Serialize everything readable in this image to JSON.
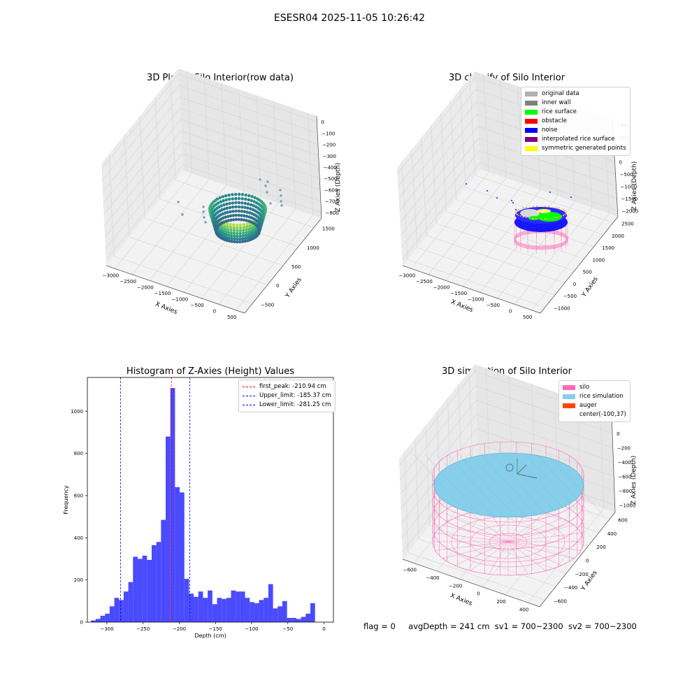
{
  "figure": {
    "suptitle": "ESESR04 2025-11-05 10:26:42",
    "status": {
      "flag": "flag = 0",
      "avg_depth": "avgDepth = 241 cm",
      "sv1": "sv1 = 700~2300",
      "sv2": "sv2 = 700~2300"
    }
  },
  "colors": {
    "histogram_bar": "#4a4aff",
    "first_peak": "#ff0000",
    "limits": "#0000ff",
    "silo": "#ff69b4",
    "rice_simulation": "#87ceeb",
    "auger": "#ff4500",
    "original": "#b0b0b0",
    "inner_wall": "#808080",
    "rice_surface": "#00ff00",
    "obstacle": "#ff0000",
    "noise": "#0000ff",
    "interpolated": "#800080",
    "symmetric": "#ffff00"
  },
  "chart_data": [
    {
      "type": "scatter3d",
      "title": "3D Plot of Silo Interior(row data)",
      "xlabel": "X Axies",
      "ylabel": "Y Axies",
      "zlabel": "Z Axies (Depth)",
      "x_ticks": [
        "−3000",
        "−2500",
        "−2000",
        "−1500",
        "−1000",
        "−500",
        "0",
        "500"
      ],
      "y_ticks": [
        "−500",
        "0",
        "500",
        "1000",
        "1500"
      ],
      "z_ticks": [
        "0",
        "−100",
        "−200",
        "−300",
        "−400",
        "−500",
        "−600",
        "−700",
        "−800"
      ],
      "colormap": "viridis"
    },
    {
      "type": "scatter3d",
      "title": "3D classify of Silo Interior",
      "xlabel": "X Axies",
      "ylabel": "Y Axies",
      "zlabel": "Z Axies (Depth)",
      "x_ticks": [
        "−3000",
        "−2500",
        "−2000",
        "−1500",
        "−1000",
        "−500",
        "0",
        "500"
      ],
      "y_ticks": [
        "−1000",
        "−500",
        "0",
        "500",
        "1000",
        "1500",
        "2000",
        "2500"
      ],
      "z_ticks": [
        "1500",
        "1000",
        "500",
        "0",
        "−500",
        "−1000",
        "−1500",
        "−2000"
      ],
      "legend": [
        "original data",
        "inner wall",
        "rice surface",
        "obstacle",
        "noise",
        "interpolated rice surface",
        "symmetric generated points"
      ],
      "legend_position": "top-right"
    },
    {
      "type": "bar",
      "title": "Histogram of Z-Axies (Height) Values",
      "xlabel": "Depth (cm)",
      "ylabel": "Frequency",
      "xlim": [
        -327,
        13
      ],
      "ylim": [
        0,
        1160
      ],
      "x_ticks": [
        -300,
        -250,
        -200,
        -150,
        -100,
        -50,
        0
      ],
      "x_tick_labels": [
        "−300",
        "−250",
        "−200",
        "−150",
        "−100",
        "−50",
        "0"
      ],
      "y_ticks": [
        0,
        200,
        400,
        600,
        800,
        1000
      ],
      "y_tick_labels": [
        "0",
        "200",
        "400",
        "600",
        "800",
        "1000"
      ],
      "bin_start": -322,
      "bin_width": 6.45,
      "values": [
        8,
        15,
        30,
        40,
        75,
        115,
        105,
        145,
        190,
        310,
        300,
        315,
        295,
        365,
        380,
        485,
        880,
        1110,
        640,
        615,
        205,
        135,
        120,
        145,
        115,
        150,
        85,
        115,
        110,
        115,
        150,
        145,
        145,
        115,
        95,
        90,
        105,
        115,
        180,
        65,
        75,
        100,
        20,
        20,
        15,
        25,
        40,
        90
      ],
      "reference_lines": [
        {
          "label": "first_peak: -210.94 cm",
          "x": -210.94,
          "color": "#ff0000"
        },
        {
          "label": "Upper_limit: -185.37 cm",
          "x": -185.37,
          "color": "#0000ff"
        },
        {
          "label": "Lower_limit: -281.25 cm",
          "x": -281.25,
          "color": "#0000ff"
        }
      ],
      "legend_position": "top-right"
    },
    {
      "type": "surface3d",
      "title": "3D simulation of Silo Interior",
      "xlabel": "X Axies",
      "ylabel": "Y Axies",
      "zlabel": "Z Axies (Depth)",
      "x_ticks": [
        "−600",
        "−400",
        "−200",
        "0",
        "200",
        "400"
      ],
      "y_ticks": [
        "−600",
        "−400",
        "−200",
        "0",
        "200",
        "400",
        "600"
      ],
      "z_ticks": [
        "200",
        "0",
        "−200",
        "−400",
        "−600",
        "−800",
        "−1000"
      ],
      "legend": [
        "silo",
        "rice simulation",
        "auger",
        "center(-100,37)"
      ],
      "legend_position": "top-right"
    }
  ]
}
